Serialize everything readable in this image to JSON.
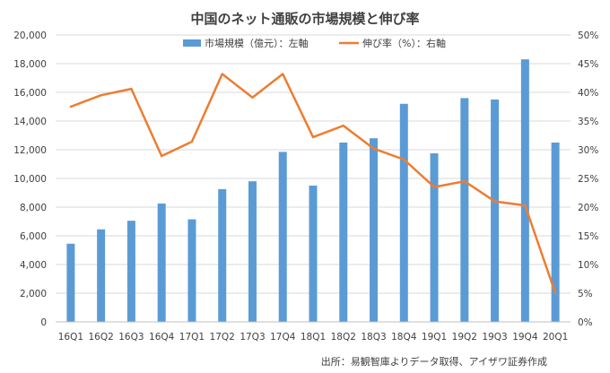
{
  "chart_data": {
    "type": "bar",
    "title": "中国のネット通販の市場規模と伸び率",
    "categories": [
      "16Q1",
      "16Q2",
      "16Q3",
      "16Q4",
      "17Q1",
      "17Q2",
      "17Q3",
      "17Q4",
      "18Q1",
      "18Q2",
      "18Q3",
      "18Q4",
      "19Q1",
      "19Q2",
      "19Q3",
      "19Q4",
      "20Q1"
    ],
    "series": [
      {
        "name": "市場規模（億元）：左軸",
        "type": "bar",
        "axis": "left",
        "color": "#5B9BD5",
        "values": [
          5450,
          6450,
          7050,
          8250,
          7150,
          9250,
          9800,
          11850,
          9500,
          12500,
          12800,
          15200,
          11750,
          15600,
          15500,
          18300,
          12500
        ]
      },
      {
        "name": "伸び率（%）：右軸",
        "type": "line",
        "axis": "right",
        "color": "#ED7D31",
        "values": [
          37.5,
          39.5,
          40.6,
          28.9,
          31.4,
          43.2,
          39.1,
          43.2,
          32.2,
          34.2,
          30.2,
          28.3,
          23.5,
          24.5,
          21.0,
          20.3,
          5.0
        ]
      }
    ],
    "y_left": {
      "ylim": [
        0,
        20000
      ],
      "ticks": [
        "0",
        "2,000",
        "4,000",
        "6,000",
        "8,000",
        "10,000",
        "12,000",
        "14,000",
        "16,000",
        "18,000",
        "20,000"
      ]
    },
    "y_right": {
      "ylim": [
        0,
        50
      ],
      "ticks": [
        "0%",
        "5%",
        "10%",
        "15%",
        "20%",
        "25%",
        "30%",
        "35%",
        "40%",
        "45%",
        "50%"
      ]
    },
    "grid": true,
    "legend_position": "top-center",
    "source_note": "出所：易観智庫よりデータ取得、アイザワ証券作成"
  }
}
